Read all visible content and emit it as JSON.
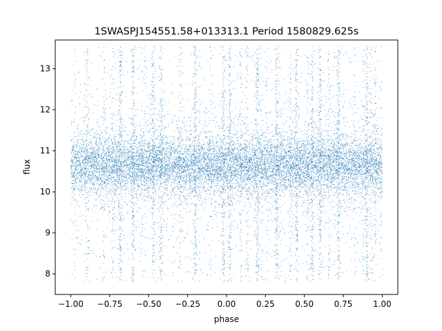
{
  "chart_data": {
    "type": "scatter",
    "title": "1SWASPJ154551.58+013313.1 Period 1580829.625s",
    "xlabel": "phase",
    "ylabel": "flux",
    "xlim": [
      -1.1,
      1.1
    ],
    "ylim": [
      7.5,
      13.7
    ],
    "x_ticks": [
      -1.0,
      -0.75,
      -0.5,
      -0.25,
      0.0,
      0.25,
      0.5,
      0.75,
      1.0
    ],
    "x_tick_labels": [
      "−1.00",
      "−0.75",
      "−0.50",
      "−0.25",
      "0.00",
      "0.25",
      "0.50",
      "0.75",
      "1.00"
    ],
    "y_ticks": [
      8,
      9,
      10,
      11,
      12,
      13
    ],
    "y_tick_labels": [
      "8",
      "9",
      "10",
      "11",
      "12",
      "13"
    ],
    "grid": false,
    "point_color": "#1f77b4",
    "series": [
      {
        "x_range": [
          -1.0,
          1.0
        ],
        "y_center": 10.65,
        "core_band": [
          9.8,
          11.5
        ],
        "outlier_range": [
          7.8,
          13.55
        ],
        "strong_columns": [
          -0.68,
          -0.6,
          -0.47,
          -0.42,
          -0.2,
          -0.02,
          0.02,
          0.2,
          0.32,
          0.45,
          0.55,
          0.6,
          0.72,
          0.9
        ]
      }
    ]
  }
}
